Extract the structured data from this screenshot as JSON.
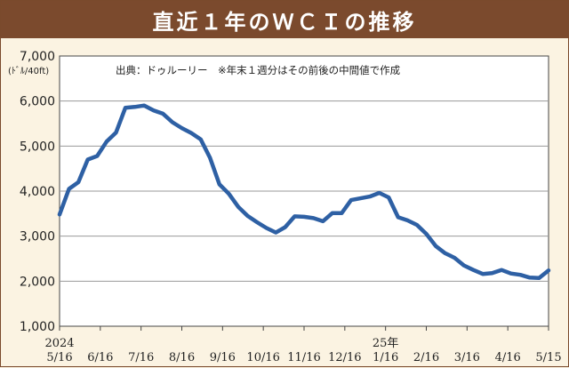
{
  "title": "直近１年のＷＣＩの推移",
  "chart_data": {
    "type": "line",
    "title": "直近１年のＷＣＩの推移",
    "unit_label": "(ﾄﾞﾙ/40ft)",
    "source_note": "出典：ドゥルーリー　※年末１週分はその前後の中間値で作成",
    "ylim": [
      1000,
      7000
    ],
    "yticks": [
      "1,000",
      "2,000",
      "3,000",
      "4,000",
      "5,000",
      "6,000",
      "7,000"
    ],
    "xticks": [
      "5/16",
      "6/16",
      "7/16",
      "8/16",
      "9/16",
      "10/16",
      "11/16",
      "12/16",
      "1/16",
      "2/16",
      "3/16",
      "4/16",
      "5/15"
    ],
    "year_labels": [
      "2024",
      "25年"
    ],
    "grid": true,
    "color": "#2e60a4",
    "series": [
      {
        "values": [
          3480,
          4050,
          4200,
          4700,
          4780,
          5100,
          5300,
          5850,
          5870,
          5900,
          5790,
          5720,
          5530,
          5400,
          5290,
          5150,
          4740,
          4150,
          3940,
          3650,
          3450,
          3310,
          3180,
          3080,
          3200,
          3440,
          3430,
          3400,
          3330,
          3510,
          3510,
          3800,
          3840,
          3880,
          3960,
          3860,
          3420,
          3350,
          3250,
          3050,
          2780,
          2620,
          2520,
          2350,
          2250,
          2160,
          2180,
          2250,
          2170,
          2140,
          2080,
          2070,
          2240
        ]
      }
    ]
  }
}
